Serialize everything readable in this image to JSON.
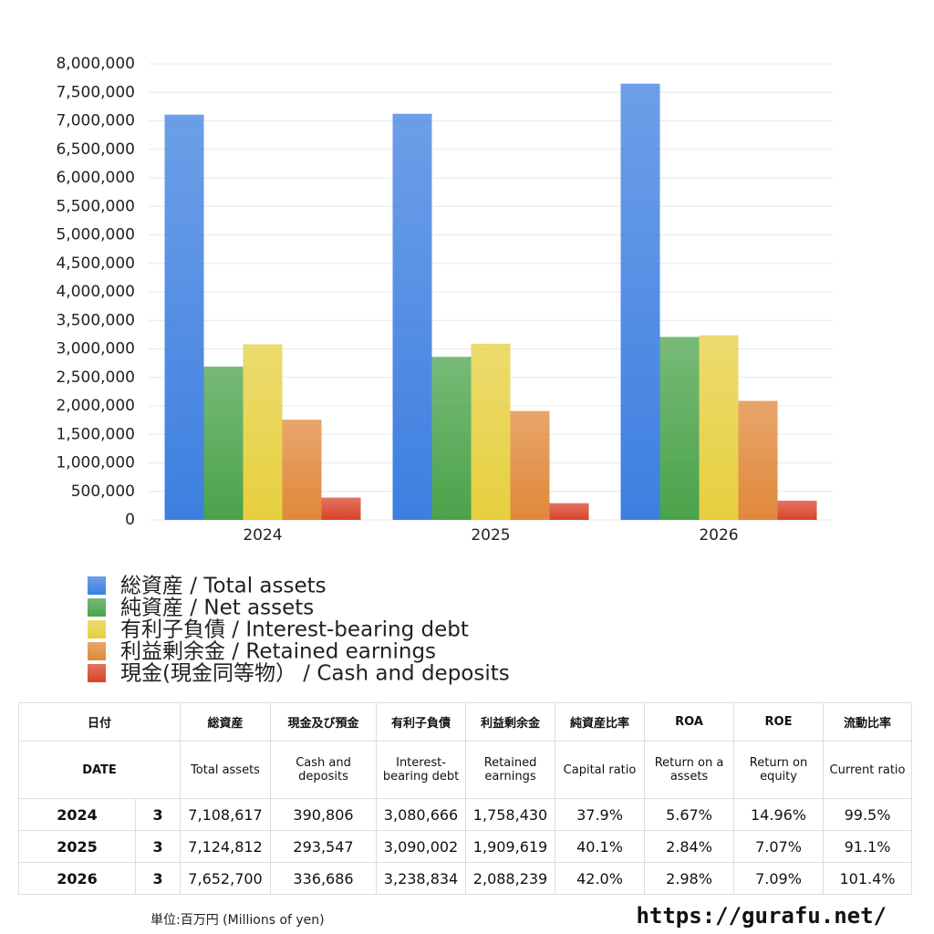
{
  "chart_data": {
    "type": "bar",
    "categories": [
      "2024",
      "2025",
      "2026"
    ],
    "series": [
      {
        "name": "総資産 / Total assets",
        "color": "#3d7fe0",
        "values": [
          7108617,
          7124812,
          7652700
        ]
      },
      {
        "name": "純資産 / Net assets",
        "color": "#4aa34a",
        "values": [
          2690000,
          2860000,
          3210000
        ]
      },
      {
        "name": "有利子負債 / Interest-bearing debt",
        "color": "#e6cf3e",
        "values": [
          3080666,
          3090002,
          3238834
        ]
      },
      {
        "name": "利益剰余金 / Retained earnings",
        "color": "#e0883a",
        "values": [
          1758430,
          1909619,
          2088239
        ]
      },
      {
        "name": "現金(現金同等物） / Cash and deposits",
        "color": "#d9442a",
        "values": [
          390806,
          293547,
          336686
        ]
      }
    ],
    "ylim": [
      0,
      8000000
    ],
    "yticks": [
      0,
      {
        "value": 500000,
        "label": "500,000"
      },
      {
        "value": 1000000,
        "label": "1,000,000"
      },
      {
        "value": 1500000,
        "label": "1,500,000"
      },
      {
        "value": 2000000,
        "label": "2,000,000"
      },
      {
        "value": 2500000,
        "label": "2,500,000"
      },
      {
        "value": 3000000,
        "label": "3,000,000"
      },
      {
        "value": 3500000,
        "label": "3,500,000"
      },
      {
        "value": 4000000,
        "label": "4,000,000"
      },
      {
        "value": 4500000,
        "label": "4,500,000"
      },
      {
        "value": 5000000,
        "label": "5,000,000"
      },
      {
        "value": 5500000,
        "label": "5,500,000"
      },
      {
        "value": 6000000,
        "label": "6,000,000"
      },
      {
        "value": 6500000,
        "label": "6,500,000"
      },
      {
        "value": 7000000,
        "label": "7,000,000"
      },
      {
        "value": 7500000,
        "label": "7,500,000"
      },
      {
        "value": 8000000,
        "label": "8,000,000"
      }
    ],
    "grid": true
  },
  "table": {
    "header1": [
      "日付",
      "総資産",
      "現金及び預金",
      "有利子負債",
      "利益剰余金",
      "純資産比率",
      "ROA",
      "ROE",
      "流動比率"
    ],
    "header2": [
      "DATE",
      "Total assets",
      "Cash and deposits",
      "Interest-bearing debt",
      "Retained earnings",
      "Capital ratio",
      "Return on a assets",
      "Return on equity",
      "Current ratio"
    ],
    "rows": [
      [
        "2024",
        "3",
        "7,108,617",
        "390,806",
        "3,080,666",
        "1,758,430",
        "37.9%",
        "5.67%",
        "14.96%",
        "99.5%"
      ],
      [
        "2025",
        "3",
        "7,124,812",
        "293,547",
        "3,090,002",
        "1,909,619",
        "40.1%",
        "2.84%",
        "7.07%",
        "91.1%"
      ],
      [
        "2026",
        "3",
        "7,652,700",
        "336,686",
        "3,238,834",
        "2,088,239",
        "42.0%",
        "2.98%",
        "7.09%",
        "101.4%"
      ]
    ]
  },
  "footer": {
    "unit": "単位:百万円 (Millions of yen)",
    "url": "https://gurafu.net/"
  }
}
